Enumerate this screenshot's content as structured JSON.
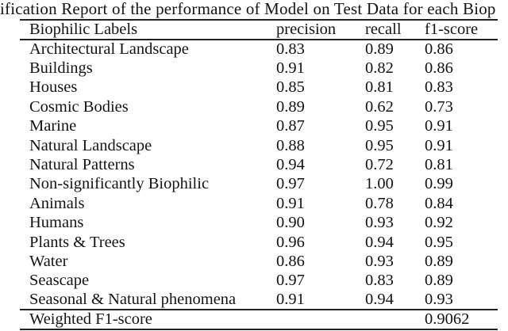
{
  "page": {
    "background_color": "#ffffff",
    "text_color": "#141414",
    "rule_color": "#222222"
  },
  "caption": {
    "visible_text": "ification Report of the performance of Model on Test Data for each Biop"
  },
  "table": {
    "columns": [
      "Biophilic Labels",
      "precision",
      "recall",
      "f1-score"
    ],
    "rows": [
      {
        "label": "Architectural Landscape",
        "precision": "0.83",
        "recall": "0.89",
        "f1": "0.86"
      },
      {
        "label": "Buildings",
        "precision": "0.91",
        "recall": "0.82",
        "f1": "0.86"
      },
      {
        "label": "Houses",
        "precision": "0.85",
        "recall": "0.81",
        "f1": "0.83"
      },
      {
        "label": "Cosmic Bodies",
        "precision": "0.89",
        "recall": "0.62",
        "f1": "0.73"
      },
      {
        "label": "Marine",
        "precision": "0.87",
        "recall": "0.95",
        "f1": "0.91"
      },
      {
        "label": "Natural Landscape",
        "precision": "0.88",
        "recall": "0.95",
        "f1": "0.91"
      },
      {
        "label": "Natural Patterns",
        "precision": "0.94",
        "recall": "0.72",
        "f1": "0.81"
      },
      {
        "label": "Non-significantly Biophilic",
        "precision": "0.97",
        "recall": "1.00",
        "f1": "0.99"
      },
      {
        "label": "Animals",
        "precision": "0.91",
        "recall": "0.78",
        "f1": "0.84"
      },
      {
        "label": "Humans",
        "precision": "0.90",
        "recall": "0.93",
        "f1": "0.92"
      },
      {
        "label": "Plants & Trees",
        "precision": "0.96",
        "recall": "0.94",
        "f1": "0.95"
      },
      {
        "label": "Water",
        "precision": "0.86",
        "recall": "0.93",
        "f1": "0.89"
      },
      {
        "label": "Seascape",
        "precision": "0.97",
        "recall": "0.83",
        "f1": "0.89"
      },
      {
        "label": "Seasonal & Natural phenomena",
        "precision": "0.91",
        "recall": "0.94",
        "f1": "0.93"
      }
    ],
    "footer": {
      "label": "Weighted F1-score",
      "precision": "",
      "recall": "",
      "f1": "0.9062"
    }
  },
  "chart_data": {
    "type": "table",
    "title": "ification Report of the performance of Model on Test Data for each Biop",
    "columns": [
      "Biophilic Labels",
      "precision",
      "recall",
      "f1-score"
    ],
    "rows": [
      [
        "Architectural Landscape",
        0.83,
        0.89,
        0.86
      ],
      [
        "Buildings",
        0.91,
        0.82,
        0.86
      ],
      [
        "Houses",
        0.85,
        0.81,
        0.83
      ],
      [
        "Cosmic Bodies",
        0.89,
        0.62,
        0.73
      ],
      [
        "Marine",
        0.87,
        0.95,
        0.91
      ],
      [
        "Natural Landscape",
        0.88,
        0.95,
        0.91
      ],
      [
        "Natural Patterns",
        0.94,
        0.72,
        0.81
      ],
      [
        "Non-significantly Biophilic",
        0.97,
        1.0,
        0.99
      ],
      [
        "Animals",
        0.91,
        0.78,
        0.84
      ],
      [
        "Humans",
        0.9,
        0.93,
        0.92
      ],
      [
        "Plants & Trees",
        0.96,
        0.94,
        0.95
      ],
      [
        "Water",
        0.86,
        0.93,
        0.89
      ],
      [
        "Seascape",
        0.97,
        0.83,
        0.89
      ],
      [
        "Seasonal & Natural phenomena",
        0.91,
        0.94,
        0.93
      ]
    ],
    "footer_row": [
      "Weighted F1-score",
      null,
      null,
      0.9062
    ]
  }
}
